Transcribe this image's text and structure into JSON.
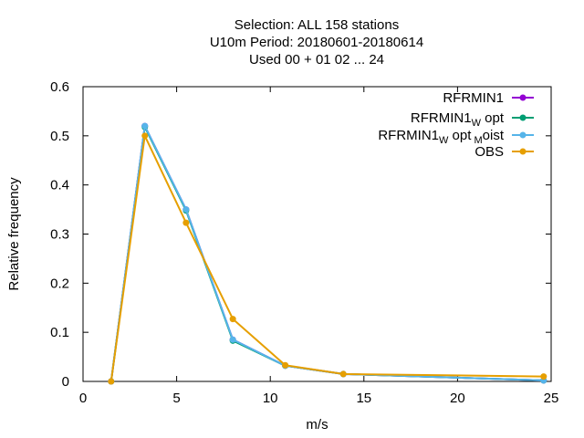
{
  "chart_data": {
    "type": "line",
    "title_lines": [
      "Selection: ALL     158 stations",
      "U10m  Period: 20180601-20180614",
      "Used  00 + 01 02 ... 24"
    ],
    "xlabel": "m/s",
    "ylabel": "Relative frequency",
    "xlim": [
      0,
      25
    ],
    "ylim": [
      0,
      0.6
    ],
    "xticks": [
      0,
      5,
      10,
      15,
      20,
      25
    ],
    "xtick_labels": [
      "0",
      "5",
      "10",
      "15",
      "20",
      "25"
    ],
    "yticks": [
      0,
      0.1,
      0.2,
      0.3,
      0.4,
      0.5,
      0.6
    ],
    "ytick_labels": [
      "0",
      "0.1",
      "0.2",
      "0.3",
      "0.4",
      "0.5",
      "0.6"
    ],
    "grid": false,
    "legend_position": "top-right",
    "x": [
      1.5,
      3.3,
      5.5,
      8.0,
      10.8,
      13.9,
      24.6
    ],
    "series": [
      {
        "name": "RFRMIN1",
        "color": "#9400d3",
        "values": [
          0.0,
          0.52,
          0.35,
          0.085,
          0.032,
          0.015,
          0.002
        ]
      },
      {
        "name": "RFRMIN1_W opt",
        "color": "#009e73",
        "values": [
          0.0,
          0.518,
          0.348,
          0.083,
          0.032,
          0.015,
          0.002
        ]
      },
      {
        "name": "RFRMIN1_W opt_M oist",
        "color": "#56b4e9",
        "values": [
          0.0,
          0.52,
          0.35,
          0.085,
          0.032,
          0.015,
          0.002
        ]
      },
      {
        "name": "OBS",
        "color": "#e69f00",
        "values": [
          0.0,
          0.5,
          0.323,
          0.127,
          0.033,
          0.015,
          0.01
        ]
      }
    ],
    "legend_entries": [
      {
        "base": "RFRMIN1",
        "sub1": "",
        "mid": "",
        "sub2": "",
        "tail": ""
      },
      {
        "base": "RFRMIN1",
        "sub1": "W",
        "mid": "opt",
        "sub2": "",
        "tail": ""
      },
      {
        "base": "RFRMIN1",
        "sub1": "W",
        "mid": "opt",
        "sub2": "M",
        "tail": "oist"
      },
      {
        "base": "OBS",
        "sub1": "",
        "mid": "",
        "sub2": "",
        "tail": ""
      }
    ]
  }
}
